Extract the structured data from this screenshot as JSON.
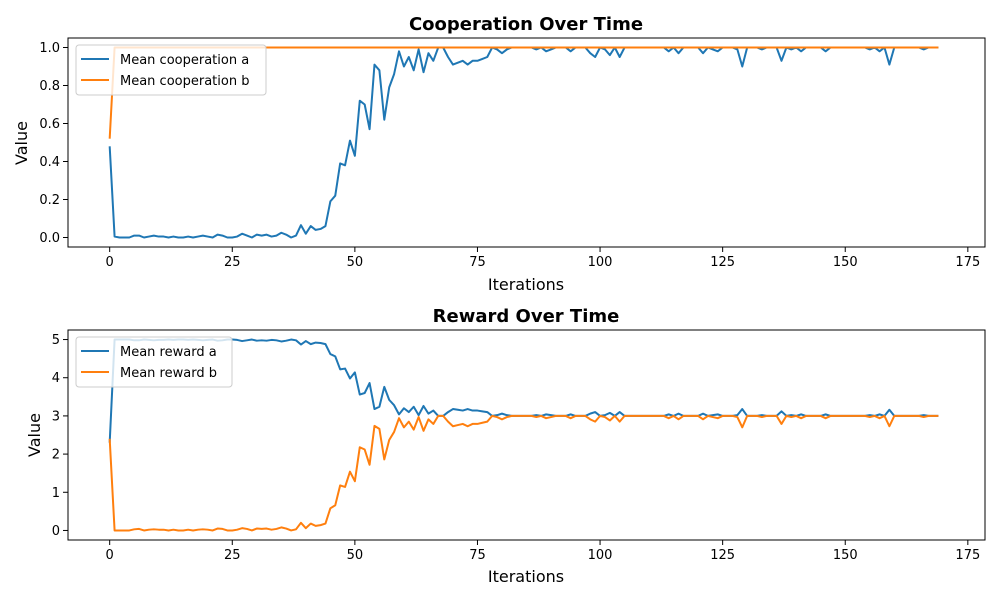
{
  "chart_data": [
    {
      "type": "line",
      "title": "Cooperation Over Time",
      "xlabel": "Iterations",
      "ylabel": "Value",
      "xlim": [
        -8.5,
        178.5
      ],
      "ylim": [
        -0.05,
        1.05
      ],
      "xticks": [
        0,
        25,
        50,
        75,
        100,
        125,
        150,
        175
      ],
      "yticks": [
        0.0,
        0.2,
        0.4,
        0.6,
        0.8,
        1.0
      ],
      "xtick_labels": [
        "0",
        "25",
        "50",
        "75",
        "100",
        "125",
        "150",
        "175"
      ],
      "ytick_labels": [
        "0.0",
        "0.2",
        "0.4",
        "0.6",
        "0.8",
        "1.0"
      ],
      "grid": false,
      "legend_position": "top-left",
      "series": [
        {
          "name": "Mean cooperation a",
          "color": "#1f77b4",
          "values": [
            0.48,
            0.005,
            0.0,
            0.0,
            0.0,
            0.01,
            0.01,
            0.0,
            0.005,
            0.01,
            0.005,
            0.005,
            0.0,
            0.005,
            0.0,
            0.0,
            0.005,
            0.0,
            0.005,
            0.01,
            0.005,
            0.0,
            0.015,
            0.01,
            0.0,
            0.0,
            0.005,
            0.02,
            0.01,
            0.0,
            0.015,
            0.01,
            0.015,
            0.005,
            0.01,
            0.025,
            0.015,
            0.0,
            0.01,
            0.065,
            0.02,
            0.06,
            0.04,
            0.045,
            0.06,
            0.19,
            0.22,
            0.39,
            0.38,
            0.51,
            0.43,
            0.72,
            0.7,
            0.57,
            0.91,
            0.88,
            0.62,
            0.79,
            0.86,
            0.98,
            0.9,
            0.95,
            0.88,
            0.99,
            0.87,
            0.97,
            0.93,
            1.0,
            1.0,
            0.95,
            0.91,
            0.92,
            0.93,
            0.91,
            0.93,
            0.93,
            0.94,
            0.95,
            1.0,
            0.99,
            0.97,
            0.99,
            1.0,
            1.0,
            1.0,
            1.0,
            1.0,
            0.99,
            1.0,
            0.98,
            0.99,
            1.0,
            1.0,
            1.0,
            0.98,
            1.0,
            1.0,
            1.0,
            0.97,
            0.95,
            1.0,
            0.99,
            0.96,
            1.0,
            0.95,
            1.0,
            1.0,
            1.0,
            1.0,
            1.0,
            1.0,
            1.0,
            1.0,
            1.0,
            0.98,
            1.0,
            0.97,
            1.0,
            1.0,
            1.0,
            1.0,
            0.97,
            1.0,
            0.99,
            0.98,
            1.0,
            1.0,
            1.0,
            0.99,
            0.9,
            1.0,
            1.0,
            1.0,
            0.99,
            1.0,
            1.0,
            1.0,
            0.93,
            1.0,
            0.99,
            1.0,
            0.98,
            1.0,
            1.0,
            1.0,
            1.0,
            0.98,
            1.0,
            1.0,
            1.0,
            1.0,
            1.0,
            1.0,
            1.0,
            1.0,
            0.99,
            1.0,
            0.98,
            1.0,
            0.91,
            1.0,
            1.0,
            1.0,
            1.0,
            1.0,
            1.0,
            0.99,
            1.0,
            1.0,
            1.0
          ]
        },
        {
          "name": "Mean cooperation b",
          "color": "#ff7f0e",
          "values": [
            0.52,
            1.0,
            1.0,
            1.0,
            1.0,
            1.0,
            1.0,
            1.0,
            1.0,
            1.0,
            1.0,
            1.0,
            1.0,
            1.0,
            1.0,
            1.0,
            1.0,
            1.0,
            1.0,
            1.0,
            1.0,
            1.0,
            1.0,
            1.0,
            1.0,
            1.0,
            1.0,
            1.0,
            1.0,
            1.0,
            1.0,
            1.0,
            1.0,
            1.0,
            1.0,
            1.0,
            1.0,
            1.0,
            1.0,
            1.0,
            1.0,
            1.0,
            1.0,
            1.0,
            1.0,
            1.0,
            1.0,
            1.0,
            1.0,
            1.0,
            1.0,
            1.0,
            1.0,
            1.0,
            1.0,
            1.0,
            1.0,
            1.0,
            1.0,
            1.0,
            1.0,
            1.0,
            1.0,
            1.0,
            1.0,
            1.0,
            1.0,
            1.0,
            1.0,
            1.0,
            1.0,
            1.0,
            1.0,
            1.0,
            1.0,
            1.0,
            1.0,
            1.0,
            1.0,
            1.0,
            1.0,
            1.0,
            1.0,
            1.0,
            1.0,
            1.0,
            1.0,
            1.0,
            1.0,
            1.0,
            1.0,
            1.0,
            1.0,
            1.0,
            1.0,
            1.0,
            1.0,
            1.0,
            1.0,
            1.0,
            1.0,
            1.0,
            1.0,
            1.0,
            1.0,
            1.0,
            1.0,
            1.0,
            1.0,
            1.0,
            1.0,
            1.0,
            1.0,
            1.0,
            1.0,
            1.0,
            1.0,
            1.0,
            1.0,
            1.0,
            1.0,
            1.0,
            1.0,
            1.0,
            1.0,
            1.0,
            1.0,
            1.0,
            1.0,
            1.0,
            1.0,
            1.0,
            1.0,
            1.0,
            1.0,
            1.0,
            1.0,
            1.0,
            1.0,
            1.0,
            1.0,
            1.0,
            1.0,
            1.0,
            1.0,
            1.0,
            1.0,
            1.0,
            1.0,
            1.0,
            1.0,
            1.0,
            1.0,
            1.0,
            1.0,
            1.0,
            1.0,
            1.0,
            1.0,
            1.0,
            1.0,
            1.0,
            1.0,
            1.0,
            1.0,
            1.0,
            1.0,
            1.0,
            1.0,
            1.0
          ]
        }
      ]
    },
    {
      "type": "line",
      "title": "Reward Over Time",
      "xlabel": "Iterations",
      "ylabel": "Value",
      "xlim": [
        -8.5,
        178.5
      ],
      "ylim": [
        -0.25,
        5.25
      ],
      "xticks": [
        0,
        25,
        50,
        75,
        100,
        125,
        150,
        175
      ],
      "yticks": [
        0,
        1,
        2,
        3,
        4,
        5
      ],
      "xtick_labels": [
        "0",
        "25",
        "50",
        "75",
        "100",
        "125",
        "150",
        "175"
      ],
      "ytick_labels": [
        "0",
        "1",
        "2",
        "3",
        "4",
        "5"
      ],
      "grid": false,
      "legend_position": "top-left",
      "series": [
        {
          "name": "Mean reward a",
          "color": "#1f77b4",
          "values": [
            2.3,
            5.0,
            5.0,
            5.0,
            5.0,
            4.98,
            4.98,
            5.0,
            4.99,
            4.98,
            4.99,
            4.99,
            5.0,
            4.99,
            5.0,
            5.0,
            4.99,
            5.0,
            4.99,
            4.98,
            4.99,
            5.0,
            4.97,
            4.98,
            5.0,
            5.0,
            4.99,
            4.96,
            4.98,
            5.0,
            4.97,
            4.98,
            4.97,
            4.99,
            4.98,
            4.95,
            4.97,
            5.0,
            4.98,
            4.87,
            4.96,
            4.88,
            4.92,
            4.91,
            4.88,
            4.62,
            4.56,
            4.22,
            4.24,
            3.98,
            4.14,
            3.56,
            3.6,
            3.86,
            3.18,
            3.24,
            3.76,
            3.42,
            3.28,
            3.04,
            3.2,
            3.1,
            3.24,
            3.02,
            3.26,
            3.06,
            3.14,
            3.0,
            3.0,
            3.1,
            3.18,
            3.16,
            3.14,
            3.18,
            3.14,
            3.14,
            3.12,
            3.1,
            3.0,
            3.02,
            3.06,
            3.02,
            3.0,
            3.0,
            3.0,
            3.0,
            3.0,
            3.02,
            3.0,
            3.04,
            3.02,
            3.0,
            3.0,
            3.0,
            3.04,
            3.0,
            3.0,
            3.0,
            3.06,
            3.1,
            3.0,
            3.02,
            3.08,
            3.0,
            3.1,
            3.0,
            3.0,
            3.0,
            3.0,
            3.0,
            3.0,
            3.0,
            3.0,
            3.0,
            3.04,
            3.0,
            3.06,
            3.0,
            3.0,
            3.0,
            3.0,
            3.06,
            3.0,
            3.02,
            3.04,
            3.0,
            3.0,
            3.0,
            3.02,
            3.18,
            3.0,
            3.0,
            3.0,
            3.02,
            3.0,
            3.0,
            3.0,
            3.12,
            3.0,
            3.02,
            3.0,
            3.04,
            3.0,
            3.0,
            3.0,
            3.0,
            3.04,
            3.0,
            3.0,
            3.0,
            3.0,
            3.0,
            3.0,
            3.0,
            3.0,
            3.02,
            3.0,
            3.04,
            3.0,
            3.16,
            3.0,
            3.0,
            3.0,
            3.0,
            3.0,
            3.0,
            3.02,
            3.0,
            3.0,
            3.0
          ]
        },
        {
          "name": "Mean reward b",
          "color": "#ff7f0e",
          "values": [
            2.4,
            0.0,
            0.0,
            0.0,
            0.0,
            0.03,
            0.04,
            0.0,
            0.02,
            0.03,
            0.02,
            0.02,
            0.0,
            0.02,
            0.0,
            0.0,
            0.02,
            0.0,
            0.02,
            0.03,
            0.02,
            0.0,
            0.05,
            0.04,
            0.0,
            0.0,
            0.02,
            0.06,
            0.04,
            0.0,
            0.05,
            0.04,
            0.05,
            0.02,
            0.04,
            0.08,
            0.05,
            0.0,
            0.03,
            0.2,
            0.06,
            0.18,
            0.12,
            0.14,
            0.18,
            0.58,
            0.66,
            1.18,
            1.14,
            1.54,
            1.29,
            2.18,
            2.12,
            1.72,
            2.74,
            2.66,
            1.86,
            2.37,
            2.58,
            2.94,
            2.7,
            2.85,
            2.64,
            2.97,
            2.61,
            2.91,
            2.79,
            3.0,
            3.0,
            2.85,
            2.73,
            2.76,
            2.79,
            2.73,
            2.79,
            2.79,
            2.82,
            2.85,
            3.0,
            2.97,
            2.91,
            2.97,
            3.0,
            3.0,
            3.0,
            3.0,
            3.0,
            2.97,
            3.0,
            2.94,
            2.97,
            3.0,
            3.0,
            3.0,
            2.94,
            3.0,
            3.0,
            3.0,
            2.91,
            2.85,
            3.0,
            2.97,
            2.88,
            3.0,
            2.85,
            3.0,
            3.0,
            3.0,
            3.0,
            3.0,
            3.0,
            3.0,
            3.0,
            3.0,
            2.94,
            3.0,
            2.91,
            3.0,
            3.0,
            3.0,
            3.0,
            2.91,
            3.0,
            2.97,
            2.94,
            3.0,
            3.0,
            3.0,
            2.97,
            2.7,
            3.0,
            3.0,
            3.0,
            2.97,
            3.0,
            3.0,
            3.0,
            2.79,
            3.0,
            2.97,
            3.0,
            2.94,
            3.0,
            3.0,
            3.0,
            3.0,
            2.94,
            3.0,
            3.0,
            3.0,
            3.0,
            3.0,
            3.0,
            3.0,
            3.0,
            2.97,
            3.0,
            2.94,
            3.0,
            2.73,
            3.0,
            3.0,
            3.0,
            3.0,
            3.0,
            3.0,
            2.97,
            3.0,
            3.0,
            3.0
          ]
        }
      ]
    }
  ]
}
